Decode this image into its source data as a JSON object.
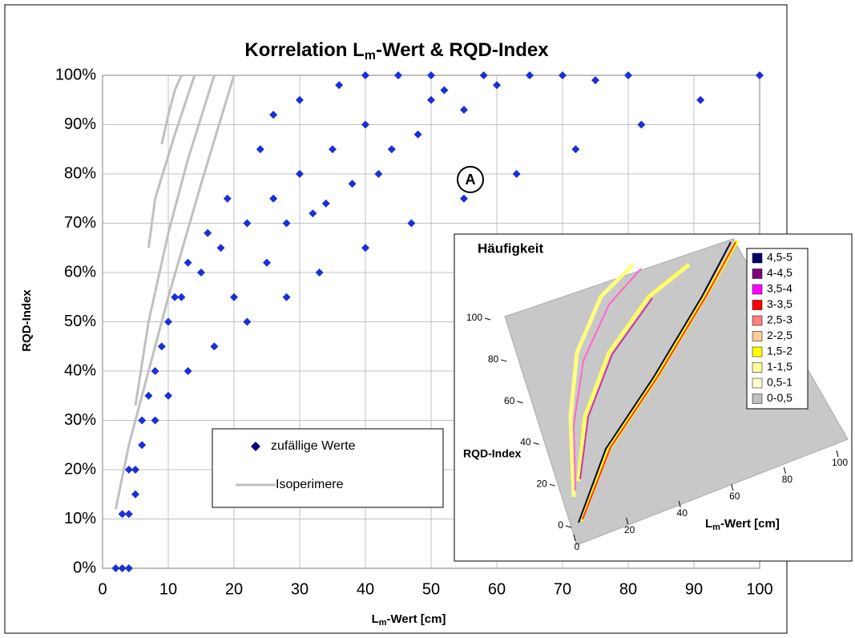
{
  "chart_data": [
    {
      "type": "scatter",
      "title_parts": [
        "Korrelation L",
        "m",
        "-Wert & RQD-Index"
      ],
      "x_label_parts": [
        "L",
        "m",
        "-Wert [cm]"
      ],
      "y_label": "RQD-Index",
      "annotations": [
        "A"
      ],
      "xlim": [
        0,
        100
      ],
      "xticks": [
        0,
        10,
        20,
        30,
        40,
        50,
        60,
        70,
        80,
        90,
        100
      ],
      "ylim": [
        0,
        100
      ],
      "yticks": [
        {
          "value": 0,
          "label": "0%"
        },
        {
          "value": 10,
          "label": "10%"
        },
        {
          "value": 20,
          "label": "20%"
        },
        {
          "value": 30,
          "label": "30%"
        },
        {
          "value": 40,
          "label": "40%"
        },
        {
          "value": 50,
          "label": "50%"
        },
        {
          "value": 60,
          "label": "60%"
        },
        {
          "value": 70,
          "label": "70%"
        },
        {
          "value": 80,
          "label": "80%"
        },
        {
          "value": 90,
          "label": "90%"
        },
        {
          "value": 100,
          "label": "100%"
        }
      ],
      "grid": true,
      "series": [
        {
          "name": "zufällige Werte",
          "color": "#1a2fd8",
          "x": [
            2,
            3,
            4,
            3,
            4,
            5,
            4,
            5,
            6,
            8,
            10,
            13,
            17,
            22,
            28,
            33,
            40,
            47,
            55,
            63,
            72,
            82,
            91,
            100,
            6,
            8,
            10,
            12,
            15,
            18,
            22,
            26,
            30,
            35,
            40,
            50,
            60,
            7,
            9,
            11,
            13,
            16,
            19,
            24,
            26,
            30,
            36,
            40,
            45,
            50,
            52,
            58,
            65,
            70,
            75,
            80,
            20,
            25,
            32,
            38,
            44,
            28,
            34,
            42,
            48,
            55
          ],
          "values": [
            0,
            0,
            0,
            11,
            11,
            15,
            20,
            20,
            25,
            30,
            35,
            40,
            45,
            50,
            55,
            60,
            65,
            70,
            75,
            80,
            85,
            90,
            95,
            100,
            30,
            40,
            50,
            55,
            60,
            65,
            70,
            75,
            80,
            85,
            90,
            95,
            98,
            35,
            45,
            55,
            62,
            68,
            75,
            85,
            92,
            95,
            98,
            100,
            100,
            100,
            97,
            100,
            100,
            100,
            99,
            100,
            55,
            62,
            72,
            78,
            85,
            70,
            74,
            80,
            88,
            93
          ]
        },
        {
          "name": "Isoperimere",
          "color": "#c0c0c0",
          "lines": [
            {
              "x": [
                2,
                4,
                6,
                10,
                15,
                20
              ],
              "values": [
                12,
                25,
                35,
                55,
                78,
                100
              ]
            },
            {
              "x": [
                5,
                7,
                10,
                13,
                17
              ],
              "values": [
                33,
                50,
                68,
                83,
                100
              ]
            },
            {
              "x": [
                7,
                8,
                11,
                14
              ],
              "values": [
                65,
                75,
                88,
                100
              ]
            },
            {
              "x": [
                9,
                10,
                11,
                12
              ],
              "values": [
                86,
                92,
                97,
                100
              ]
            }
          ]
        }
      ]
    },
    {
      "type": "surface3d",
      "title": "Häufigkeit",
      "x_label_parts": [
        "L",
        "m",
        "-Wert [cm]"
      ],
      "y_label": "RQD-Index",
      "xlim": [
        0,
        100
      ],
      "xticks": [
        0,
        20,
        40,
        60,
        80,
        100
      ],
      "ylim": [
        0,
        100
      ],
      "yticks": [
        0,
        20,
        40,
        60,
        80,
        100
      ],
      "legend": [
        {
          "name": "4,5-5",
          "color": "#000066"
        },
        {
          "name": "4-4,5",
          "color": "#800080"
        },
        {
          "name": "3,5-4",
          "color": "#ff00ff"
        },
        {
          "name": "3-3,5",
          "color": "#ff0000"
        },
        {
          "name": "2,5-3",
          "color": "#ff8080"
        },
        {
          "name": "2-2,5",
          "color": "#ffcc99"
        },
        {
          "name": "1,5-2",
          "color": "#ffff00"
        },
        {
          "name": "1-1,5",
          "color": "#ffff99"
        },
        {
          "name": "0,5-1",
          "color": "#ffffcc"
        },
        {
          "name": "0-0,5",
          "color": "#c0c0c0"
        }
      ]
    }
  ]
}
